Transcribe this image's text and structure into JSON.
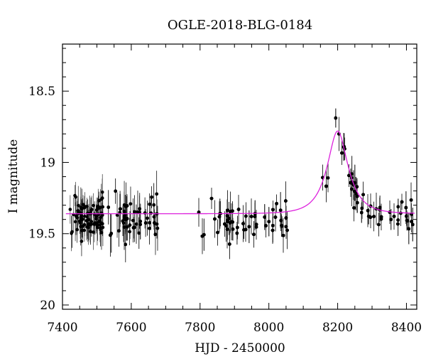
{
  "chart_data": {
    "type": "scatter",
    "title": "OGLE-2018-BLG-0184",
    "xlabel": "HJD - 2450000",
    "ylabel": "I magnitude",
    "xlim": [
      7400,
      8430
    ],
    "ylim": [
      20.03,
      18.17
    ],
    "y_inverted": true,
    "grid": false,
    "x_ticks": [
      {
        "value": 7400,
        "label": "7400"
      },
      {
        "value": 7600,
        "label": "7600"
      },
      {
        "value": 7800,
        "label": "7800"
      },
      {
        "value": 8000,
        "label": "8000"
      },
      {
        "value": 8200,
        "label": "8200"
      },
      {
        "value": 8400,
        "label": "8400"
      }
    ],
    "y_ticks": [
      {
        "value": 18.5,
        "label": "18.5"
      },
      {
        "value": 19,
        "label": "19"
      },
      {
        "value": 19.5,
        "label": "19.5"
      },
      {
        "value": 20,
        "label": "20"
      }
    ],
    "model": {
      "color": "#dd22dd",
      "t0": 8200,
      "u0": 0.5,
      "tE": 55,
      "baseline_mag": 19.36,
      "peak_mag": 18.78
    },
    "observing_seasons": [
      {
        "x_range": [
          7420,
          7520
        ],
        "mag_center": 19.36,
        "scatter": 0.12,
        "err": 0.1
      },
      {
        "x_range": [
          7530,
          7680
        ],
        "mag_center": 19.35,
        "scatter": 0.14,
        "err": 0.12
      },
      {
        "x_range": [
          7790,
          8060
        ],
        "mag_center": 19.38,
        "scatter": 0.12,
        "err": 0.1
      },
      {
        "x_range": [
          8150,
          8425
        ],
        "mag_center": null,
        "scatter": 0.1,
        "err": 0.09
      }
    ],
    "marker_color": "#000000"
  }
}
